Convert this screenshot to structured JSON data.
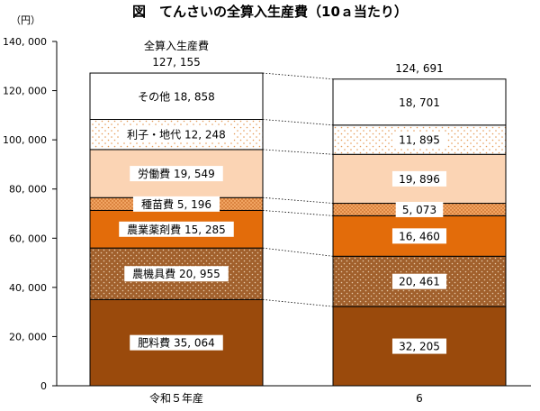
{
  "chart_data": {
    "type": "bar",
    "stacked": true,
    "title": "図　てんさいの全算入生産費（10ａ当たり）",
    "y_unit": "（円）",
    "ylim": [
      0,
      140000
    ],
    "y_ticks": [
      {
        "value": 0,
        "label": "0"
      },
      {
        "value": 20000,
        "label": "20, 000"
      },
      {
        "value": 40000,
        "label": "40, 000"
      },
      {
        "value": 60000,
        "label": "60, 000"
      },
      {
        "value": 80000,
        "label": "80, 000"
      },
      {
        "value": 100000,
        "label": "100, 000"
      },
      {
        "value": 120000,
        "label": "120, 000"
      },
      {
        "value": 140000,
        "label": "140, 000"
      }
    ],
    "grid": false,
    "categories": [
      "令和５年産",
      "6"
    ],
    "totals": {
      "caption": "全算入生産費",
      "values": [
        127155,
        124691
      ],
      "labels": [
        "127, 155",
        "124, 691"
      ]
    },
    "series": [
      {
        "name": "肥料費",
        "values": [
          35064,
          32205
        ],
        "value_labels": [
          "35, 064",
          "32, 205"
        ],
        "color": "#9a4a0c",
        "pattern": "none",
        "label_box": "white"
      },
      {
        "name": "農機具費",
        "values": [
          20955,
          20461
        ],
        "value_labels": [
          "20, 955",
          "20, 461"
        ],
        "color": "#a1602c",
        "pattern": "dots-light",
        "label_box": "white"
      },
      {
        "name": "農業薬剤費",
        "values": [
          15285,
          16460
        ],
        "value_labels": [
          "15, 285",
          "16, 460"
        ],
        "color": "#e36c0a",
        "pattern": "none",
        "label_box": "white"
      },
      {
        "name": "種苗費",
        "values": [
          5196,
          5073
        ],
        "value_labels": [
          "5, 196",
          "5, 073"
        ],
        "color": "#f1a462",
        "pattern": "dots-dark",
        "label_box": "white"
      },
      {
        "name": "労働費",
        "values": [
          19549,
          19896
        ],
        "value_labels": [
          "19, 549",
          "19, 896"
        ],
        "color": "#fbd4b4",
        "pattern": "none",
        "label_box": "white"
      },
      {
        "name": "利子・地代",
        "values": [
          12248,
          11895
        ],
        "value_labels": [
          "12, 248",
          "11, 895"
        ],
        "color": "#ffffff",
        "pattern": "dots-sparse",
        "label_box": "white"
      },
      {
        "name": "その他",
        "values": [
          18858,
          18701
        ],
        "value_labels": [
          "18, 858",
          "18, 701"
        ],
        "color": "#ffffff",
        "pattern": "none",
        "label_box": "none"
      }
    ]
  }
}
